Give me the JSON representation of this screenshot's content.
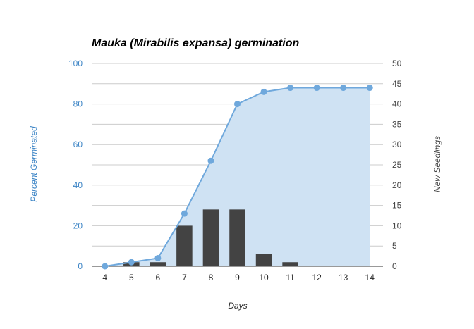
{
  "chart_data": {
    "type": "bar+area-line",
    "title": "Mauka (Mirabilis expansa) germination",
    "xlabel": "Days",
    "ylabel_left": "Percent Germinated",
    "ylabel_right": "New Seedlings",
    "categories": [
      "4",
      "5",
      "6",
      "7",
      "8",
      "9",
      "10",
      "11",
      "12",
      "13",
      "14"
    ],
    "ylim_left": [
      0,
      100
    ],
    "yticks_left": [
      0,
      20,
      40,
      60,
      80,
      100
    ],
    "ylim_right": [
      0,
      50
    ],
    "yticks_right": [
      0,
      5,
      10,
      15,
      20,
      25,
      30,
      35,
      40,
      45,
      50
    ],
    "grid": true,
    "series": [
      {
        "axis": "left",
        "kind": "area-line",
        "color": "#6fa8dc",
        "fill": "#cfe2f3",
        "values": [
          0,
          2,
          4,
          26,
          52,
          80,
          86,
          88,
          88,
          88,
          88
        ]
      },
      {
        "axis": "right",
        "kind": "bar",
        "color": "#434343",
        "values": [
          0,
          1,
          1,
          10,
          14,
          14,
          3,
          1,
          0,
          0,
          0
        ]
      }
    ],
    "colors": {
      "left_axis_text": "#3d85c6",
      "right_axis_text": "#444444",
      "grid": "#cccccc",
      "axis": "#333333"
    }
  }
}
